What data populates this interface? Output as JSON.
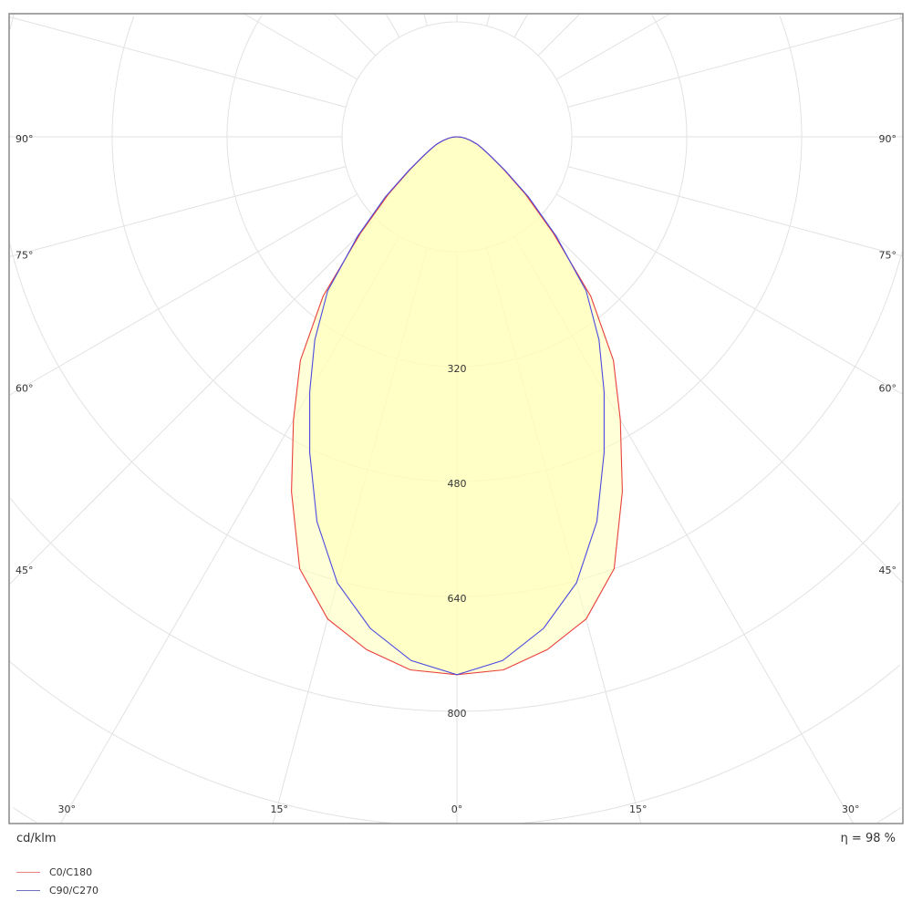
{
  "chart_data": {
    "type": "polar",
    "unit_label": "cd/klm",
    "efficiency_label": "η = 98 %",
    "radial_ticks": [
      160,
      320,
      480,
      640,
      800,
      960,
      1120,
      1280,
      1440
    ],
    "radial_tick_labels": [
      "320",
      "480",
      "640",
      "800"
    ],
    "angle_step_deg": 15,
    "angle_labels": {
      "sides": [
        "90°",
        "75°",
        "60°",
        "45°"
      ],
      "bottom": [
        "30°",
        "15°",
        "0°",
        "15°",
        "30°"
      ]
    },
    "angles_deg": [
      0,
      5,
      10,
      15,
      20,
      25,
      30,
      35,
      40,
      45,
      50,
      55,
      60,
      65,
      70,
      75,
      80,
      85,
      90
    ],
    "series": [
      {
        "name": "C0/C180",
        "color": "#e8403a",
        "values": [
          749,
          745,
          725,
          695,
          640,
          545,
          455,
          380,
          290,
          190,
          125,
          80,
          55,
          40,
          30,
          20,
          12,
          6,
          0
        ]
      },
      {
        "name": "C90/C270",
        "color": "#4a4ae0",
        "values": [
          749,
          732,
          695,
          643,
          570,
          485,
          410,
          345,
          280,
          195,
          130,
          82,
          55,
          40,
          30,
          20,
          12,
          6,
          0
        ]
      }
    ],
    "fill_color": "#ffffb8",
    "grid": true
  }
}
